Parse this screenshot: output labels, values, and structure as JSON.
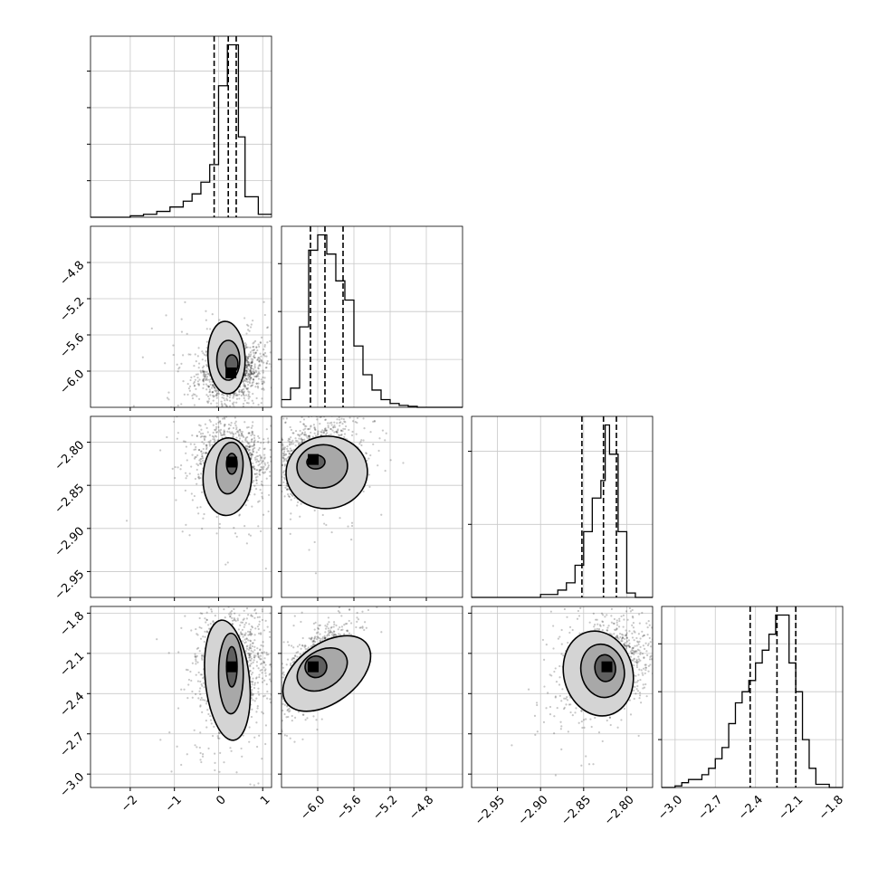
{
  "chart_data": {
    "type": "corner",
    "parameters": 4,
    "grid": true,
    "histograms": [
      {
        "param": 0,
        "range": [
          -2.9,
          1.2
        ],
        "bins": [
          [
            -2.9,
            -2.6,
            0
          ],
          [
            -2.6,
            -2.3,
            0
          ],
          [
            -2.3,
            -2.0,
            0
          ],
          [
            -2.0,
            -1.7,
            1
          ],
          [
            -1.7,
            -1.4,
            2
          ],
          [
            -1.4,
            -1.1,
            4
          ],
          [
            -1.1,
            -0.8,
            7
          ],
          [
            -0.8,
            -0.6,
            11
          ],
          [
            -0.6,
            -0.4,
            16
          ],
          [
            -0.4,
            -0.2,
            24
          ],
          [
            -0.2,
            0.0,
            36
          ],
          [
            0.0,
            0.2,
            90
          ],
          [
            0.2,
            0.45,
            118
          ],
          [
            0.45,
            0.6,
            55
          ],
          [
            0.6,
            0.9,
            14
          ],
          [
            0.9,
            1.2,
            2
          ]
        ],
        "quantiles": [
          -0.1,
          0.22,
          0.4
        ],
        "yticks": [
          25,
          50,
          75,
          100
        ]
      },
      {
        "param": 1,
        "range": [
          -6.4,
          -4.4
        ],
        "bins": [
          [
            -6.4,
            -6.3,
            4
          ],
          [
            -6.3,
            -6.2,
            10
          ],
          [
            -6.2,
            -6.1,
            42
          ],
          [
            -6.1,
            -6.0,
            82
          ],
          [
            -6.0,
            -5.9,
            90
          ],
          [
            -5.9,
            -5.8,
            80
          ],
          [
            -5.8,
            -5.7,
            66
          ],
          [
            -5.7,
            -5.6,
            56
          ],
          [
            -5.6,
            -5.5,
            32
          ],
          [
            -5.5,
            -5.4,
            17
          ],
          [
            -5.4,
            -5.3,
            9
          ],
          [
            -5.3,
            -5.2,
            4
          ],
          [
            -5.2,
            -5.1,
            2
          ],
          [
            -5.1,
            -5.0,
            1
          ],
          [
            -5.0,
            -4.9,
            0.5
          ],
          [
            -4.9,
            -4.4,
            0
          ]
        ],
        "quantiles": [
          -6.08,
          -5.92,
          -5.72
        ],
        "yticks": [
          25,
          50,
          75
        ]
      },
      {
        "param": 2,
        "range": [
          -2.98,
          -2.77
        ],
        "bins": [
          [
            -2.98,
            -2.9,
            0
          ],
          [
            -2.9,
            -2.88,
            2
          ],
          [
            -2.88,
            -2.87,
            5
          ],
          [
            -2.87,
            -2.86,
            10
          ],
          [
            -2.86,
            -2.85,
            22
          ],
          [
            -2.85,
            -2.84,
            45
          ],
          [
            -2.84,
            -2.83,
            68
          ],
          [
            -2.83,
            -2.825,
            80
          ],
          [
            -2.825,
            -2.82,
            118
          ],
          [
            -2.82,
            -2.81,
            98
          ],
          [
            -2.81,
            -2.8,
            45
          ],
          [
            -2.8,
            -2.79,
            3
          ],
          [
            -2.79,
            -2.77,
            0
          ]
        ],
        "quantiles": [
          -2.852,
          -2.827,
          -2.812
        ],
        "yticks": [
          50,
          100
        ]
      },
      {
        "param": 3,
        "range": [
          -3.1,
          -1.75
        ],
        "bins": [
          [
            -3.1,
            -3.0,
            0
          ],
          [
            -3.0,
            -2.95,
            1
          ],
          [
            -2.95,
            -2.9,
            3
          ],
          [
            -2.9,
            -2.8,
            5
          ],
          [
            -2.8,
            -2.75,
            8
          ],
          [
            -2.75,
            -2.7,
            12
          ],
          [
            -2.7,
            -2.65,
            18
          ],
          [
            -2.65,
            -2.6,
            25
          ],
          [
            -2.6,
            -2.55,
            40
          ],
          [
            -2.55,
            -2.5,
            53
          ],
          [
            -2.5,
            -2.45,
            60
          ],
          [
            -2.45,
            -2.4,
            67
          ],
          [
            -2.4,
            -2.35,
            78
          ],
          [
            -2.35,
            -2.3,
            86
          ],
          [
            -2.3,
            -2.25,
            96
          ],
          [
            -2.25,
            -2.2,
            108
          ],
          [
            -2.2,
            -2.15,
            108
          ],
          [
            -2.15,
            -2.1,
            78
          ],
          [
            -2.1,
            -2.05,
            60
          ],
          [
            -2.05,
            -2.0,
            30
          ],
          [
            -2.0,
            -1.95,
            12
          ],
          [
            -1.95,
            -1.85,
            2
          ],
          [
            -1.85,
            -1.75,
            0
          ]
        ],
        "quantiles": [
          -2.44,
          -2.24,
          -2.1
        ],
        "yticks": [
          30,
          60,
          90
        ]
      }
    ],
    "panels2d": [
      {
        "row": 1,
        "col": 0,
        "xrange": [
          -2.9,
          1.2
        ],
        "yrange": [
          -6.4,
          -4.4
        ],
        "center": [
          0.28,
          -6.02
        ],
        "spread": [
          0.35,
          0.15
        ],
        "corr": 0.15,
        "contours": [
          [
            0.3,
            -5.92,
            0.14,
            0.1,
            0
          ],
          [
            0.22,
            -5.88,
            0.26,
            0.22,
            0
          ],
          [
            0.18,
            -5.85,
            0.42,
            0.4,
            0.05
          ]
        ]
      },
      {
        "row": 2,
        "col": 0,
        "xrange": [
          -2.9,
          1.2
        ],
        "yrange": [
          -2.98,
          -2.77
        ],
        "center": [
          0.3,
          -2.823
        ],
        "spread": [
          0.35,
          0.02
        ],
        "corr": 0.0,
        "contours": [
          [
            0.3,
            -2.825,
            0.12,
            0.012,
            0
          ],
          [
            0.25,
            -2.83,
            0.3,
            0.03,
            -0.1
          ],
          [
            0.2,
            -2.84,
            0.55,
            0.045,
            -0.05
          ]
        ]
      },
      {
        "row": 2,
        "col": 1,
        "xrange": [
          -6.4,
          -4.4
        ],
        "yrange": [
          -2.98,
          -2.77
        ],
        "center": [
          -6.05,
          -2.82
        ],
        "spread": [
          0.2,
          0.02
        ],
        "corr": 0.2,
        "contours": [
          [
            -6.02,
            -2.823,
            0.1,
            0.008,
            0.05
          ],
          [
            -5.95,
            -2.828,
            0.28,
            0.025,
            0.1
          ],
          [
            -5.9,
            -2.835,
            0.45,
            0.042,
            0.08
          ]
        ]
      },
      {
        "row": 3,
        "col": 0,
        "xrange": [
          -2.9,
          1.2
        ],
        "yrange": [
          -3.1,
          -1.75
        ],
        "center": [
          0.3,
          -2.2
        ],
        "spread": [
          0.35,
          0.2
        ],
        "corr": 0.1,
        "contours": [
          [
            0.3,
            -2.2,
            0.12,
            0.15,
            0
          ],
          [
            0.28,
            -2.25,
            0.28,
            0.3,
            0
          ],
          [
            0.2,
            -2.3,
            0.5,
            0.45,
            0.1
          ]
        ]
      },
      {
        "row": 3,
        "col": 1,
        "xrange": [
          -6.4,
          -4.4
        ],
        "yrange": [
          -3.1,
          -1.75
        ],
        "center": [
          -6.05,
          -2.2
        ],
        "spread": [
          0.2,
          0.15
        ],
        "corr": 0.75,
        "contours": [
          [
            -6.02,
            -2.2,
            0.12,
            0.08,
            0.5
          ],
          [
            -5.95,
            -2.22,
            0.3,
            0.14,
            0.55
          ],
          [
            -5.9,
            -2.25,
            0.55,
            0.22,
            0.6
          ]
        ]
      },
      {
        "row": 3,
        "col": 2,
        "xrange": [
          -2.98,
          -2.77
        ],
        "yrange": [
          -3.1,
          -1.75
        ],
        "center": [
          -2.823,
          -2.2
        ],
        "spread": [
          0.02,
          0.15
        ],
        "corr": 0.3,
        "contours": [
          [
            -2.825,
            -2.21,
            0.012,
            0.1,
            0.1
          ],
          [
            -2.828,
            -2.23,
            0.025,
            0.2,
            0.2
          ],
          [
            -2.833,
            -2.25,
            0.04,
            0.32,
            0.25
          ]
        ]
      }
    ],
    "axis_ticks": {
      "x": [
        {
          "param": 0,
          "ticks": [
            -2,
            -1,
            0,
            1
          ],
          "labels": [
            "−2",
            "−1",
            "0",
            "1"
          ]
        },
        {
          "param": 1,
          "ticks": [
            -6.0,
            -5.6,
            -5.2,
            -4.8
          ],
          "labels": [
            "−6.0",
            "−5.6",
            "−5.2",
            "−4.8"
          ]
        },
        {
          "param": 2,
          "ticks": [
            -2.95,
            -2.9,
            -2.85,
            -2.8
          ],
          "labels": [
            "−2.95",
            "−2.90",
            "−2.85",
            "−2.80"
          ]
        },
        {
          "param": 3,
          "ticks": [
            -3.0,
            -2.7,
            -2.4,
            -2.1,
            -1.8
          ],
          "labels": [
            "−3.0",
            "−2.7",
            "−2.4",
            "−2.1",
            "−1.8"
          ]
        }
      ],
      "y": [
        {
          "param": 1,
          "ticks": [
            -6.0,
            -5.6,
            -5.2,
            -4.8
          ],
          "labels": [
            "−6.0",
            "−5.6",
            "−5.2",
            "−4.8"
          ]
        },
        {
          "param": 2,
          "ticks": [
            -2.95,
            -2.9,
            -2.85,
            -2.8
          ],
          "labels": [
            "−2.95",
            "−2.90",
            "−2.85",
            "−2.80"
          ]
        },
        {
          "param": 3,
          "ticks": [
            -3.0,
            -2.7,
            -2.4,
            -2.1,
            -1.8
          ],
          "labels": [
            "−3.0",
            "−2.7",
            "−2.4",
            "−2.1",
            "−1.8"
          ]
        }
      ]
    }
  }
}
